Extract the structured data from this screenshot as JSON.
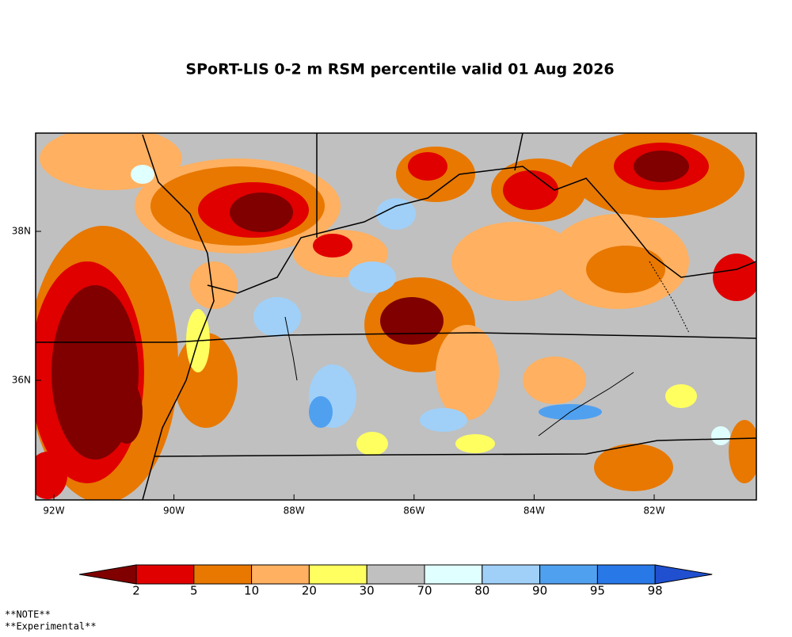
{
  "title": "SPoRT-LIS 0-2 m RSM percentile valid 01 Aug 2026",
  "lat_labels": [
    "38N",
    "36N"
  ],
  "lon_labels": [
    "92W",
    "90W",
    "88W",
    "86W",
    "84W",
    "82W"
  ],
  "colorbar": {
    "bounds": [
      2,
      5,
      10,
      20,
      30,
      70,
      80,
      90,
      95,
      98
    ],
    "colors": [
      "#800000",
      "#e00000",
      "#e87800",
      "#ffb060",
      "#ffff60",
      "#c0c0c0",
      "#e0ffff",
      "#a0d0f8",
      "#50a0f0",
      "#2878e8",
      "#2050d0"
    ]
  },
  "notes": [
    "**NOTE**",
    "**Experimental**"
  ]
}
